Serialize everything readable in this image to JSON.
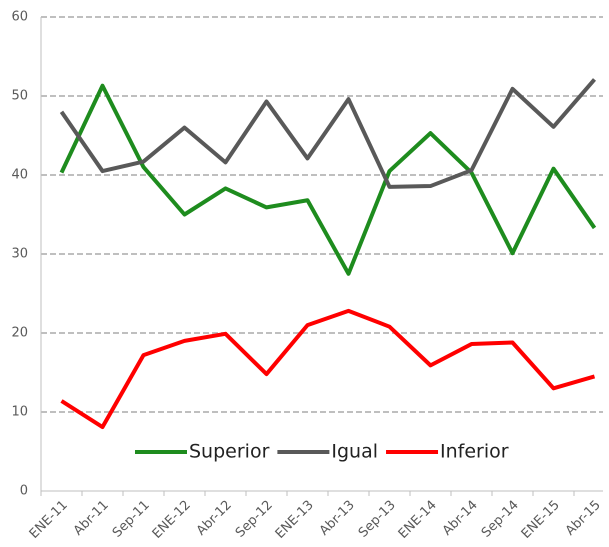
{
  "chart_data": {
    "type": "line",
    "categories": [
      "ENE-11",
      "Abr-11",
      "Sep-11",
      "ENE-12",
      "Abr-12",
      "Sep-12",
      "ENE-13",
      "Abr-13",
      "Sep-13",
      "ENE-14",
      "Abr-14",
      "Sep-14",
      "ENE-15",
      "Abr-15"
    ],
    "series": [
      {
        "name": "Superior",
        "color": "#1e8c1e",
        "values": [
          40.3,
          51.3,
          41,
          35,
          38.3,
          35.9,
          36.8,
          27.5,
          40.5,
          45.3,
          40.3,
          30.1,
          40.8,
          33.3
        ]
      },
      {
        "name": "Igual",
        "color": "#595959",
        "values": [
          48,
          40.5,
          41.7,
          46,
          41.6,
          49.3,
          42.1,
          49.6,
          38.5,
          38.6,
          40.6,
          50.9,
          46.1,
          52.1
        ]
      },
      {
        "name": "Inferior",
        "color": "#ff0000",
        "values": [
          11.4,
          8.1,
          17.2,
          19,
          19.9,
          14.8,
          21,
          22.8,
          20.8,
          15.9,
          18.6,
          18.8,
          13,
          14.5
        ]
      }
    ],
    "ylim": [
      0,
      60
    ],
    "yticks": [
      0,
      10,
      20,
      30,
      40,
      50,
      60
    ],
    "grid": true,
    "legend": "bottom"
  }
}
